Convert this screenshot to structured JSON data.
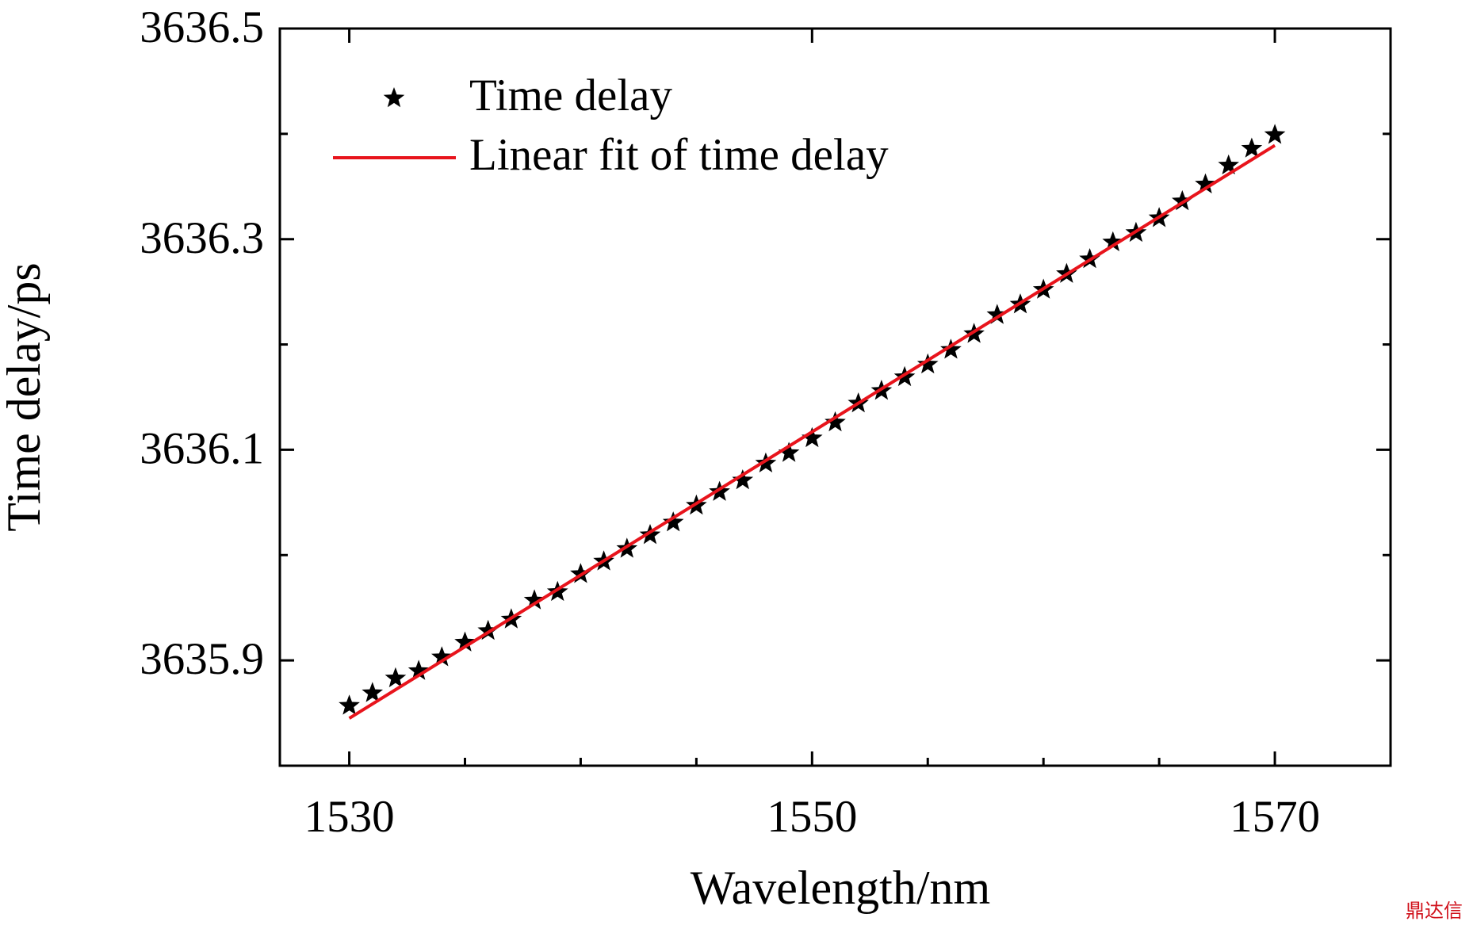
{
  "chart_data": {
    "type": "scatter",
    "x_label": "Wavelength/nm",
    "y_label": "Time delay/ps",
    "xlim": [
      1527,
      1575
    ],
    "ylim": [
      3635.8,
      3636.5
    ],
    "xticks": [
      1530,
      1550,
      1570
    ],
    "yticks": [
      3635.9,
      3636.1,
      3636.3,
      3636.5
    ],
    "xminor_ticks": [
      1535,
      1540,
      1545,
      1555,
      1560,
      1565
    ],
    "yminor_ticks": [
      3636.0,
      3636.2,
      3636.4
    ],
    "legend": "upper left",
    "series": [
      {
        "name": "Time delay",
        "color": "#000000",
        "marker": "star",
        "x": [
          1530,
          1531,
          1532,
          1533,
          1534,
          1535,
          1536,
          1537,
          1538,
          1539,
          1540,
          1541,
          1542,
          1543,
          1544,
          1545,
          1546,
          1547,
          1548,
          1549,
          1550,
          1551,
          1552,
          1553,
          1554,
          1555,
          1556,
          1557,
          1558,
          1559,
          1560,
          1561,
          1562,
          1563,
          1564,
          1565,
          1566,
          1567,
          1568,
          1569,
          1570
        ],
        "values": [
          3635.857,
          3635.869,
          3635.883,
          3635.89,
          3635.903,
          3635.917,
          3635.928,
          3635.939,
          3635.957,
          3635.965,
          3635.982,
          3635.994,
          3636.006,
          3636.019,
          3636.031,
          3636.047,
          3636.06,
          3636.071,
          3636.087,
          3636.097,
          3636.111,
          3636.126,
          3636.144,
          3636.156,
          3636.169,
          3636.181,
          3636.195,
          3636.21,
          3636.228,
          3636.238,
          3636.252,
          3636.267,
          3636.281,
          3636.297,
          3636.306,
          3636.32,
          3636.336,
          3636.352,
          3636.37,
          3636.386,
          3636.399
        ]
      },
      {
        "name": "Linear fit of time delay",
        "color": "#e8141c",
        "marker": "line",
        "x": [
          1530,
          1570
        ],
        "values": [
          3635.845,
          3636.389
        ]
      }
    ],
    "watermark": "鼎达信"
  }
}
